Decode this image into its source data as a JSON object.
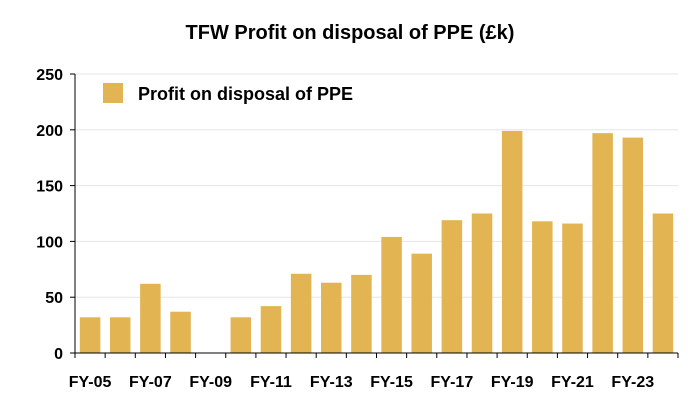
{
  "chart_data": {
    "type": "bar",
    "title": "TFW Profit on disposal of PPE (£k)",
    "categories": [
      "FY-05",
      "FY-06",
      "FY-07",
      "FY-08",
      "FY-09",
      "FY-10",
      "FY-11",
      "FY-12",
      "FY-13",
      "FY-14",
      "FY-15",
      "FY-16",
      "FY-17",
      "FY-18",
      "FY-19",
      "FY-20",
      "FY-21",
      "FY-22",
      "FY-23",
      "FY-24"
    ],
    "x_tick_labels": [
      "FY-05",
      "FY-07",
      "FY-09",
      "FY-11",
      "FY-13",
      "FY-15",
      "FY-17",
      "FY-19",
      "FY-21",
      "FY-23"
    ],
    "series": [
      {
        "name": "Profit on disposal of PPE",
        "values": [
          32,
          32,
          62,
          37,
          0,
          32,
          42,
          71,
          63,
          70,
          104,
          89,
          119,
          125,
          199,
          118,
          116,
          197,
          193,
          125
        ],
        "color": "#E3B452"
      }
    ],
    "ylim": [
      0,
      250
    ],
    "y_ticks": [
      "0",
      "50",
      "100",
      "150",
      "200",
      "250"
    ],
    "grid": true,
    "legend_position": "top-left"
  }
}
